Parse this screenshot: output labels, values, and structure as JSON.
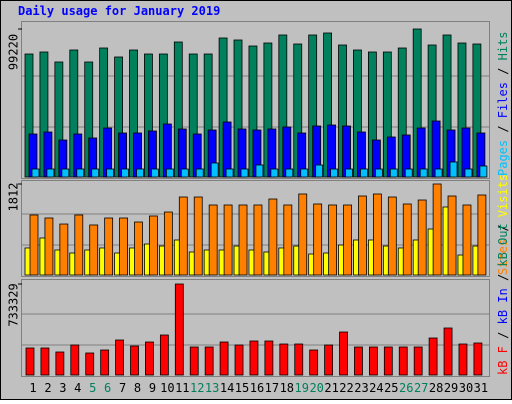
{
  "chart_data": [
    {
      "type": "bar",
      "title": "Daily usage for January 2019",
      "categories": [
        "1",
        "2",
        "3",
        "4",
        "5",
        "6",
        "7",
        "8",
        "9",
        "10",
        "11",
        "12",
        "13",
        "14",
        "15",
        "16",
        "17",
        "18",
        "19",
        "20",
        "21",
        "22",
        "23",
        "24",
        "25",
        "26",
        "27",
        "28",
        "29",
        "30",
        "31"
      ],
      "category_colors": [
        "#000000",
        "#000000",
        "#000000",
        "#000000",
        "#00805c",
        "#00805c",
        "#000000",
        "#000000",
        "#000000",
        "#000000",
        "#000000",
        "#00805c",
        "#00805c",
        "#000000",
        "#000000",
        "#000000",
        "#000000",
        "#000000",
        "#00805c",
        "#00805c",
        "#000000",
        "#000000",
        "#000000",
        "#000000",
        "#000000",
        "#00805c",
        "#00805c",
        "#000000",
        "#000000",
        "#000000",
        "#000000"
      ],
      "legend_separator": " / ",
      "ylim": [
        0,
        99220
      ],
      "yticks": [
        99220
      ],
      "series": [
        {
          "name": "Pages",
          "color": "#00c0ff",
          "values": [
            5360,
            5360,
            5360,
            5360,
            5360,
            5360,
            5360,
            5360,
            5360,
            5360,
            5360,
            5360,
            9390,
            5360,
            5360,
            8040,
            5360,
            5360,
            5360,
            8040,
            5360,
            5360,
            5360,
            5360,
            5360,
            5360,
            5360,
            5360,
            10060,
            5360,
            7370
          ]
        },
        {
          "name": "Files",
          "color": "#0000ff",
          "values": [
            28830,
            30170,
            24800,
            28830,
            26150,
            32850,
            29500,
            29500,
            30840,
            35530,
            32180,
            28830,
            31510,
            36870,
            32180,
            31510,
            32180,
            33520,
            29500,
            34190,
            34860,
            34190,
            30170,
            24800,
            26820,
            28160,
            32850,
            37540,
            31510,
            32850,
            29500
          ]
        },
        {
          "name": "Hits",
          "color": "#00805c",
          "values": [
            82460,
            83800,
            77100,
            85140,
            77100,
            86480,
            80450,
            85140,
            82460,
            82460,
            90500,
            82460,
            82460,
            93190,
            91850,
            87820,
            89830,
            95200,
            89160,
            95200,
            96540,
            88490,
            85140,
            83800,
            83800,
            86480,
            99220,
            88490,
            95200,
            89830,
            89160
          ]
        }
      ]
    },
    {
      "type": "bar",
      "ylim": [
        0,
        1812
      ],
      "yticks": [
        1812
      ],
      "series": [
        {
          "name": "Sites",
          "color": "#ff8000",
          "values": [
            1195,
            1135,
            1015,
            1195,
            996,
            1135,
            1135,
            1055,
            1175,
            1254,
            1553,
            1553,
            1394,
            1394,
            1394,
            1394,
            1513,
            1394,
            1613,
            1414,
            1394,
            1394,
            1573,
            1613,
            1553,
            1414,
            1493,
            1812,
            1573,
            1394,
            1593
          ]
        },
        {
          "name": "Visits",
          "color": "#ffff00",
          "values": [
            538,
            737,
            498,
            438,
            498,
            538,
            438,
            538,
            617,
            577,
            697,
            458,
            498,
            498,
            577,
            498,
            458,
            538,
            577,
            418,
            438,
            597,
            697,
            697,
            577,
            538,
            697,
            916,
            1354,
            398,
            577
          ]
        }
      ]
    },
    {
      "type": "bar",
      "ylim": [
        0,
        733329
      ],
      "yticks": [
        733329
      ],
      "series": [
        {
          "name": "kB F",
          "color": "#ff0000",
          "values": [
            217570,
            217570,
            185330,
            241740,
            177280,
            201450,
            282030,
            233680,
            265910,
            322320,
            733329,
            225620,
            225620,
            265910,
            241740,
            273970,
            273970,
            249800,
            249800,
            201450,
            241740,
            346490,
            225620,
            225620,
            225620,
            225620,
            225620,
            298150,
            378730,
            249800,
            257860
          ]
        }
      ],
      "extra_legend": [
        {
          "name": "kB In",
          "color": "#0000ff"
        },
        {
          "name": "kB Out",
          "color": "#00805c"
        }
      ]
    }
  ]
}
